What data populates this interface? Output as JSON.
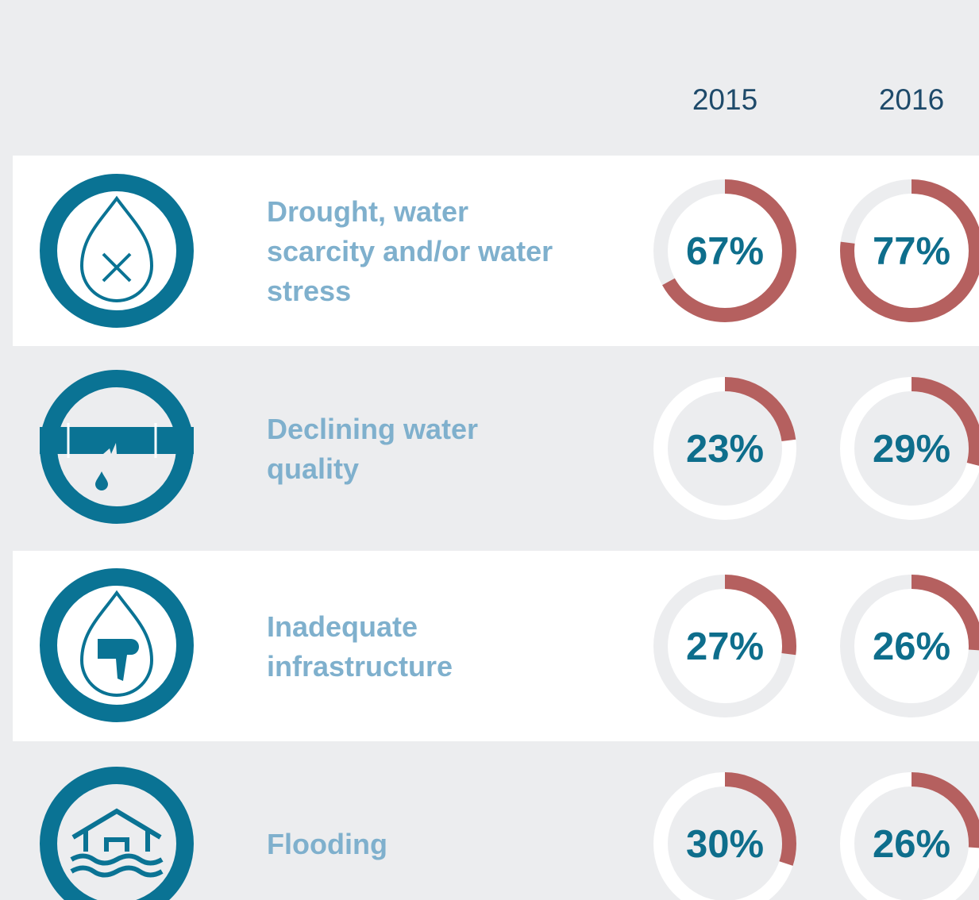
{
  "chart_data": {
    "type": "donut",
    "categories": [
      [
        "Drought, water",
        "scarcity and/or water",
        "stress"
      ],
      [
        "Declining water",
        "quality"
      ],
      [
        "Inadequate",
        "infrastructure"
      ],
      [
        "Flooding"
      ]
    ],
    "series": [
      {
        "name": "2015",
        "values": [
          67,
          23,
          27,
          30
        ],
        "value_labels": [
          "67%",
          "23%",
          "27%",
          "30%"
        ]
      },
      {
        "name": "2016",
        "values": [
          77,
          29,
          26,
          26
        ],
        "value_labels": [
          "77%",
          "29%",
          "26%",
          "26%"
        ]
      }
    ],
    "color": "#b5605f",
    "ylim": [
      0,
      100
    ]
  }
}
